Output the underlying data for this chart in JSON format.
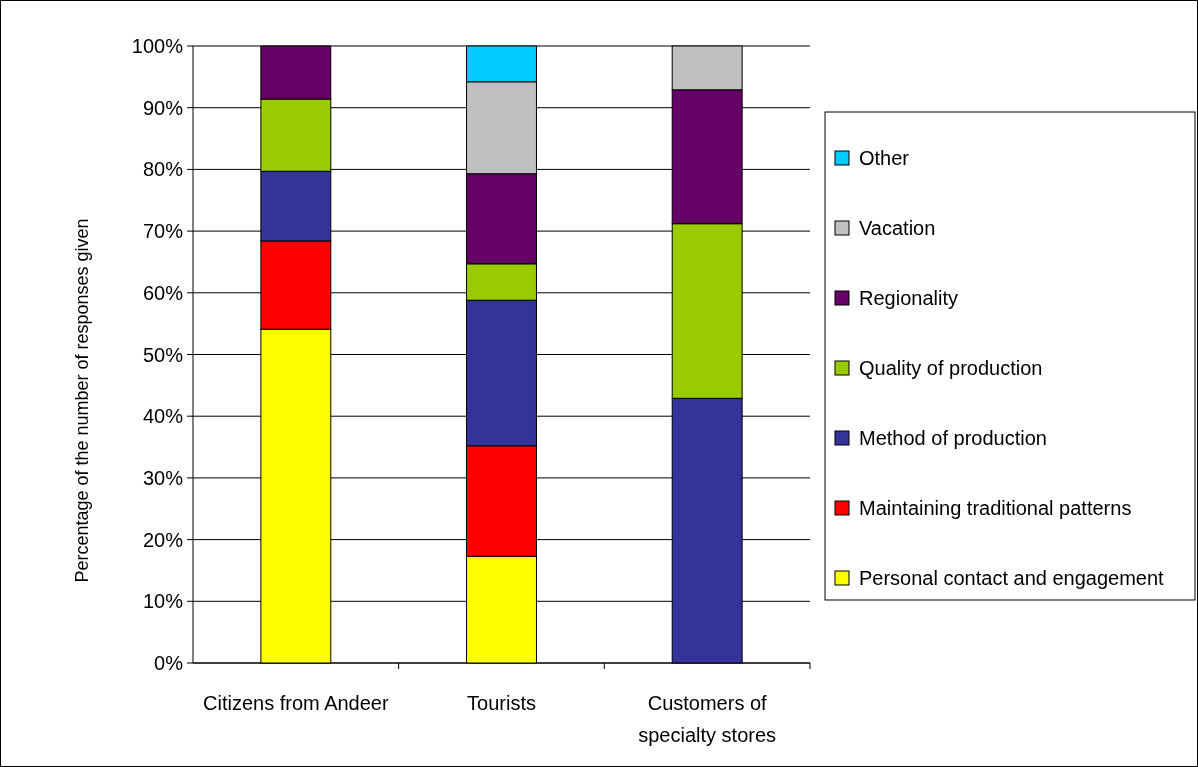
{
  "chart_data": {
    "type": "bar",
    "stacked": true,
    "ylabel": "Percentage of the number of responses given",
    "categories": [
      "Citizens from Andeer",
      "Tourists",
      "Customers of specialty stores"
    ],
    "series": [
      {
        "name": "Personal contact and engagement",
        "color": "#ffff00",
        "values": [
          54.1,
          17.3,
          0
        ]
      },
      {
        "name": "Maintaining traditional patterns",
        "color": "#ff0000",
        "values": [
          14.3,
          17.9,
          0
        ]
      },
      {
        "name": "Method of production",
        "color": "#333399",
        "values": [
          11.3,
          23.6,
          42.9
        ]
      },
      {
        "name": "Quality of production",
        "color": "#99cc00",
        "values": [
          11.7,
          5.9,
          28.3
        ]
      },
      {
        "name": "Regionality",
        "color": "#660066",
        "values": [
          8.6,
          14.6,
          21.7
        ]
      },
      {
        "name": "Vacation",
        "color": "#c0c0c0",
        "values": [
          0,
          14.9,
          7.1
        ]
      },
      {
        "name": "Other",
        "color": "#00ccff",
        "values": [
          0,
          5.8,
          0
        ]
      }
    ],
    "ylim": [
      0,
      100
    ],
    "yticks": [
      {
        "value": 0,
        "label": "0%"
      },
      {
        "value": 10,
        "label": "10%"
      },
      {
        "value": 20,
        "label": "20%"
      },
      {
        "value": 30,
        "label": "30%"
      },
      {
        "value": 40,
        "label": "40%"
      },
      {
        "value": 50,
        "label": "50%"
      },
      {
        "value": 60,
        "label": "60%"
      },
      {
        "value": 70,
        "label": "70%"
      },
      {
        "value": 80,
        "label": "80%"
      },
      {
        "value": 90,
        "label": "90%"
      },
      {
        "value": 100,
        "label": "100%"
      }
    ],
    "grid": "y",
    "legend": "right"
  }
}
